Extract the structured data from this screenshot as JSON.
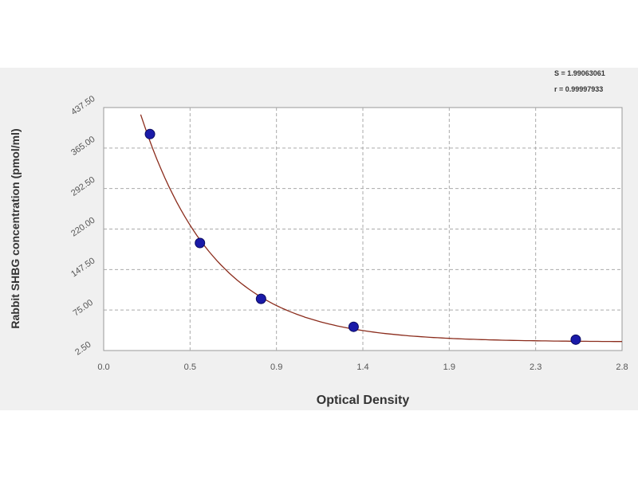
{
  "chart_data": {
    "type": "scatter",
    "title": "",
    "xlabel": "Optical Density",
    "ylabel": "Rabbit SHBG  concentration (pmol/ml)",
    "xlim": [
      0.0,
      2.8
    ],
    "ylim": [
      2.5,
      437.5
    ],
    "x_ticks": [
      "0.0",
      "0.5",
      "0.9",
      "1.4",
      "1.9",
      "2.3",
      "2.8"
    ],
    "y_ticks": [
      "2.50",
      "75.00",
      "147.50",
      "220.00",
      "292.50",
      "365.00",
      "437.50"
    ],
    "grid": true,
    "stats": [
      "S = 1.99063061",
      "r = 0.99997933"
    ],
    "series": [
      {
        "points": [
          {
            "x": 0.25,
            "y": 390
          },
          {
            "x": 0.52,
            "y": 195
          },
          {
            "x": 0.85,
            "y": 95
          },
          {
            "x": 1.35,
            "y": 45
          },
          {
            "x": 2.55,
            "y": 22
          }
        ]
      }
    ],
    "colors": {
      "curve": "#8b2c1c",
      "points": "#1a1aa8",
      "grid": "#aaaaaa",
      "panel": "#f0f0f0"
    }
  }
}
